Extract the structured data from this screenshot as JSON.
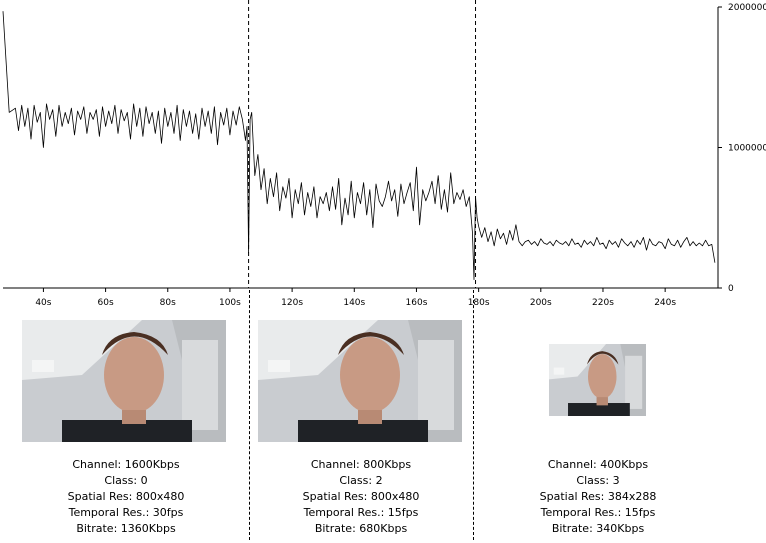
{
  "chart_data": {
    "type": "line",
    "title": "",
    "xlabel": "",
    "ylabel": "",
    "xlim": [
      27,
      257
    ],
    "ylim": [
      0,
      2000000
    ],
    "x_ticks": [
      "40s",
      "60s",
      "80s",
      "100s",
      "120s",
      "140s",
      "160s",
      "180s",
      "200s",
      "220s",
      "240s"
    ],
    "x_tick_values": [
      40,
      60,
      80,
      100,
      120,
      140,
      160,
      180,
      200,
      220,
      240
    ],
    "y_ticks": [
      "0",
      "1000000",
      "2000000"
    ],
    "y_tick_values": [
      0,
      1000000,
      2000000
    ],
    "y_axis_side": "right",
    "grid": false,
    "legend": "none",
    "vertical_markers_x": [
      106,
      179
    ],
    "series": [
      {
        "color": "#000000",
        "x": [
          27,
          29,
          31,
          32,
          33,
          34,
          35,
          36,
          37,
          38,
          39,
          40,
          41,
          42,
          43,
          44,
          45,
          46,
          47,
          48,
          49,
          50,
          51,
          52,
          53,
          54,
          55,
          56,
          57,
          58,
          59,
          60,
          61,
          62,
          63,
          64,
          65,
          66,
          67,
          68,
          69,
          70,
          71,
          72,
          73,
          74,
          75,
          76,
          77,
          78,
          79,
          80,
          81,
          82,
          83,
          84,
          85,
          86,
          87,
          88,
          89,
          90,
          91,
          92,
          93,
          94,
          95,
          96,
          97,
          98,
          99,
          100,
          101,
          102,
          103,
          104,
          105,
          105.5,
          106,
          106.5,
          107,
          108,
          109,
          110,
          111,
          112,
          113,
          114,
          115,
          116,
          117,
          118,
          119,
          120,
          121,
          122,
          123,
          124,
          125,
          126,
          127,
          128,
          129,
          130,
          131,
          132,
          133,
          134,
          135,
          136,
          137,
          138,
          139,
          140,
          141,
          142,
          143,
          144,
          145,
          146,
          147,
          148,
          149,
          150,
          151,
          152,
          153,
          154,
          155,
          156,
          157,
          158,
          159,
          160,
          161,
          162,
          163,
          164,
          165,
          166,
          167,
          168,
          169,
          170,
          171,
          172,
          173,
          174,
          175,
          176,
          177,
          178,
          178.5,
          179,
          179.5,
          180,
          181,
          182,
          183,
          184,
          185,
          186,
          187,
          188,
          189,
          190,
          191,
          192,
          193,
          194,
          195,
          196,
          197,
          198,
          199,
          200,
          201,
          202,
          203,
          204,
          205,
          206,
          207,
          208,
          209,
          210,
          211,
          212,
          213,
          214,
          215,
          216,
          217,
          218,
          219,
          220,
          221,
          222,
          223,
          224,
          225,
          226,
          227,
          228,
          229,
          230,
          231,
          232,
          233,
          234,
          235,
          236,
          237,
          238,
          239,
          240,
          241,
          242,
          243,
          244,
          245,
          246,
          247,
          248,
          249,
          250,
          251,
          252,
          253,
          254,
          255,
          256
        ],
        "y": [
          1970000,
          1250000,
          1280000,
          1120000,
          1300000,
          1150000,
          1280000,
          1060000,
          1300000,
          1180000,
          1250000,
          1000000,
          1310000,
          1200000,
          1270000,
          1080000,
          1300000,
          1150000,
          1250000,
          1170000,
          1280000,
          1090000,
          1260000,
          1200000,
          1290000,
          1100000,
          1250000,
          1200000,
          1270000,
          1080000,
          1290000,
          1150000,
          1260000,
          1170000,
          1300000,
          1100000,
          1270000,
          1190000,
          1250000,
          1060000,
          1310000,
          1150000,
          1280000,
          1080000,
          1290000,
          1170000,
          1250000,
          1100000,
          1260000,
          1030000,
          1280000,
          1150000,
          1250000,
          1100000,
          1300000,
          1050000,
          1270000,
          1150000,
          1260000,
          1100000,
          1240000,
          1060000,
          1280000,
          1150000,
          1260000,
          1100000,
          1290000,
          1020000,
          1250000,
          1160000,
          1280000,
          1090000,
          1260000,
          1160000,
          1290000,
          1200000,
          1050000,
          1150000,
          250000,
          1200000,
          1250000,
          800000,
          950000,
          700000,
          850000,
          600000,
          780000,
          650000,
          820000,
          550000,
          720000,
          640000,
          780000,
          500000,
          700000,
          600000,
          750000,
          520000,
          680000,
          580000,
          720000,
          500000,
          650000,
          600000,
          680000,
          550000,
          720000,
          560000,
          780000,
          450000,
          640000,
          520000,
          760000,
          500000,
          680000,
          600000,
          750000,
          520000,
          700000,
          430000,
          740000,
          620000,
          580000,
          650000,
          760000,
          620000,
          700000,
          510000,
          740000,
          600000,
          680000,
          750000,
          550000,
          860000,
          450000,
          700000,
          620000,
          680000,
          760000,
          600000,
          800000,
          560000,
          700000,
          540000,
          820000,
          600000,
          680000,
          630000,
          700000,
          580000,
          650000,
          400000,
          60000,
          650000,
          500000,
          440000,
          360000,
          430000,
          330000,
          400000,
          300000,
          420000,
          350000,
          390000,
          310000,
          410000,
          340000,
          450000,
          330000,
          300000,
          330000,
          340000,
          310000,
          330000,
          300000,
          350000,
          320000,
          310000,
          330000,
          300000,
          340000,
          320000,
          310000,
          330000,
          300000,
          350000,
          310000,
          320000,
          290000,
          340000,
          310000,
          330000,
          300000,
          360000,
          310000,
          320000,
          280000,
          340000,
          310000,
          330000,
          290000,
          350000,
          320000,
          300000,
          330000,
          290000,
          340000,
          310000,
          360000,
          270000,
          350000,
          310000,
          300000,
          330000,
          320000,
          280000,
          350000,
          310000,
          300000,
          340000,
          290000,
          330000,
          360000,
          300000,
          330000,
          300000,
          320000,
          300000,
          340000,
          300000,
          310000,
          180000
        ]
      }
    ]
  },
  "panels": [
    {
      "photo_alt": "webcam frame, large",
      "channel": "Channel: 1600Kbps",
      "class": "Class: 0",
      "spatial": "Spatial Res: 800x480",
      "temporal": "Temporal Res.: 30fps",
      "bitrate": "Bitrate: 1360Kbps"
    },
    {
      "photo_alt": "webcam frame, large",
      "channel": "Channel: 800Kbps",
      "class": "Class: 2",
      "spatial": "Spatial Res: 800x480",
      "temporal": "Temporal Res.: 15fps",
      "bitrate": "Bitrate: 680Kbps"
    },
    {
      "photo_alt": "webcam frame, small",
      "channel": "Channel: 400Kbps",
      "class": "Class: 3",
      "spatial": "Spatial Res: 384x288",
      "temporal": "Temporal Res.: 15fps",
      "bitrate": "Bitrate: 340Kbps"
    }
  ]
}
